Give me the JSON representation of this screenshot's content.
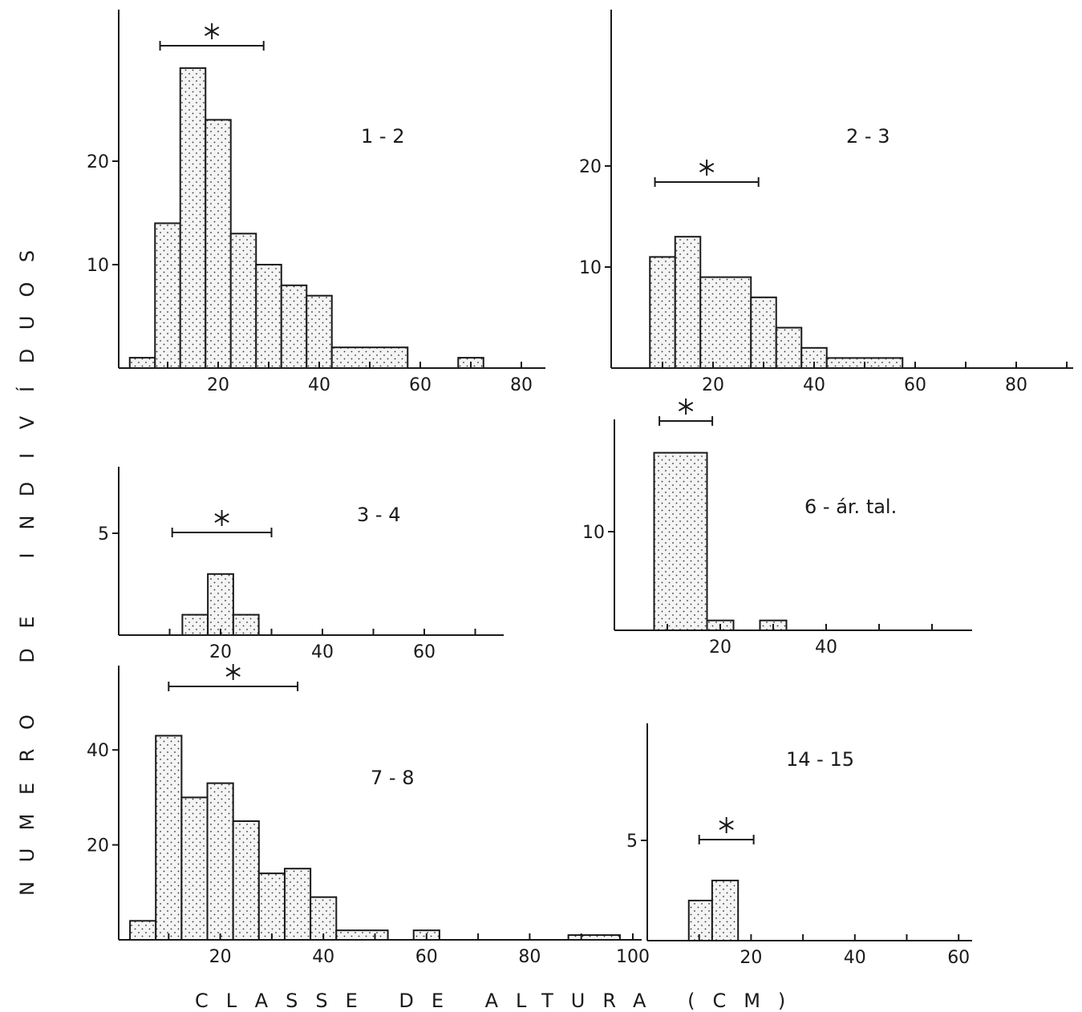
{
  "ylabel": "NUMERO DE INDIVÍDUOS",
  "xlabel": "CLASSE DE ALTURA (CM)",
  "chart_data": [
    {
      "id": "p12",
      "type": "bar",
      "title": "1 - 2",
      "ylim": [
        0,
        30
      ],
      "yticks": [
        10,
        20
      ],
      "xlim": [
        0,
        85
      ],
      "xticks": [
        20,
        40,
        60,
        80
      ],
      "bins": [
        {
          "x0": 2.5,
          "x1": 7.5,
          "y": 1
        },
        {
          "x0": 7.5,
          "x1": 12.5,
          "y": 14
        },
        {
          "x0": 12.5,
          "x1": 17.5,
          "y": 29
        },
        {
          "x0": 17.5,
          "x1": 22.5,
          "y": 24
        },
        {
          "x0": 22.5,
          "x1": 27.5,
          "y": 13
        },
        {
          "x0": 27.5,
          "x1": 32.5,
          "y": 10
        },
        {
          "x0": 32.5,
          "x1": 37.5,
          "y": 8
        },
        {
          "x0": 37.5,
          "x1": 42.5,
          "y": 7
        },
        {
          "x0": 42.5,
          "x1": 57.5,
          "y": 2
        },
        {
          "x0": 67.5,
          "x1": 72.5,
          "y": 1
        }
      ],
      "range_bar": [
        8.5,
        29
      ]
    },
    {
      "id": "p23",
      "type": "bar",
      "title": "2 - 3",
      "ylim": [
        0,
        32
      ],
      "yticks": [
        10,
        20
      ],
      "xlim": [
        0,
        93
      ],
      "xticks": [
        20,
        40,
        60,
        80
      ],
      "bins": [
        {
          "x0": 7.5,
          "x1": 12.5,
          "y": 11
        },
        {
          "x0": 12.5,
          "x1": 17.5,
          "y": 13
        },
        {
          "x0": 17.5,
          "x1": 27.5,
          "y": 9
        },
        {
          "x0": 27.5,
          "x1": 32.5,
          "y": 7
        },
        {
          "x0": 32.5,
          "x1": 37.5,
          "y": 4
        },
        {
          "x0": 37.5,
          "x1": 42.5,
          "y": 2
        },
        {
          "x0": 42.5,
          "x1": 57.5,
          "y": 1
        }
      ],
      "range_bar": [
        8.5,
        29
      ]
    },
    {
      "id": "p34",
      "type": "bar",
      "title": "3 - 4",
      "ylim": [
        0,
        10
      ],
      "yticks": [
        5
      ],
      "xlim": [
        0,
        75
      ],
      "xticks": [
        20,
        40,
        60
      ],
      "bins": [
        {
          "x0": 12.5,
          "x1": 17.5,
          "y": 1
        },
        {
          "x0": 17.5,
          "x1": 22.5,
          "y": 3
        },
        {
          "x0": 22.5,
          "x1": 27.5,
          "y": 1
        }
      ],
      "range_bar": [
        10.5,
        30
      ]
    },
    {
      "id": "p6",
      "type": "bar",
      "title": "6 - ár. tal.",
      "ylim": [
        0,
        21
      ],
      "yticks": [
        10
      ],
      "xlim": [
        0,
        60
      ],
      "xticks": [
        20,
        40
      ],
      "bins": [
        {
          "x0": 7.5,
          "x1": 17.5,
          "y": 18
        },
        {
          "x0": 17.5,
          "x1": 22.5,
          "y": 1
        },
        {
          "x0": 27.5,
          "x1": 32.5,
          "y": 1
        }
      ],
      "range_bar": [
        8.5,
        18.5
      ]
    },
    {
      "id": "p78",
      "type": "bar",
      "title": "7 - 8",
      "ylim": [
        0,
        54
      ],
      "yticks": [
        20,
        40
      ],
      "xlim": [
        0,
        103
      ],
      "xticks": [
        20,
        40,
        60,
        80,
        100
      ],
      "bins": [
        {
          "x0": 2.5,
          "x1": 7.5,
          "y": 4
        },
        {
          "x0": 7.5,
          "x1": 12.5,
          "y": 43
        },
        {
          "x0": 12.5,
          "x1": 17.5,
          "y": 30
        },
        {
          "x0": 17.5,
          "x1": 22.5,
          "y": 33
        },
        {
          "x0": 22.5,
          "x1": 27.5,
          "y": 25
        },
        {
          "x0": 27.5,
          "x1": 32.5,
          "y": 14
        },
        {
          "x0": 32.5,
          "x1": 37.5,
          "y": 15
        },
        {
          "x0": 37.5,
          "x1": 42.5,
          "y": 9
        },
        {
          "x0": 42.5,
          "x1": 52.5,
          "y": 2
        },
        {
          "x0": 57.5,
          "x1": 62.5,
          "y": 2
        },
        {
          "x0": 87.5,
          "x1": 97.5,
          "y": 1
        }
      ],
      "range_bar": [
        10,
        35
      ]
    },
    {
      "id": "p1415",
      "type": "bar",
      "title": "14 - 15",
      "ylim": [
        0,
        11
      ],
      "yticks": [
        5
      ],
      "xlim": [
        0,
        65
      ],
      "xticks": [
        20,
        40,
        60
      ],
      "bins": [
        {
          "x0": 8,
          "x1": 12.5,
          "y": 2
        },
        {
          "x0": 12.5,
          "x1": 17.5,
          "y": 3
        }
      ],
      "range_bar": [
        10,
        20.5
      ]
    }
  ]
}
